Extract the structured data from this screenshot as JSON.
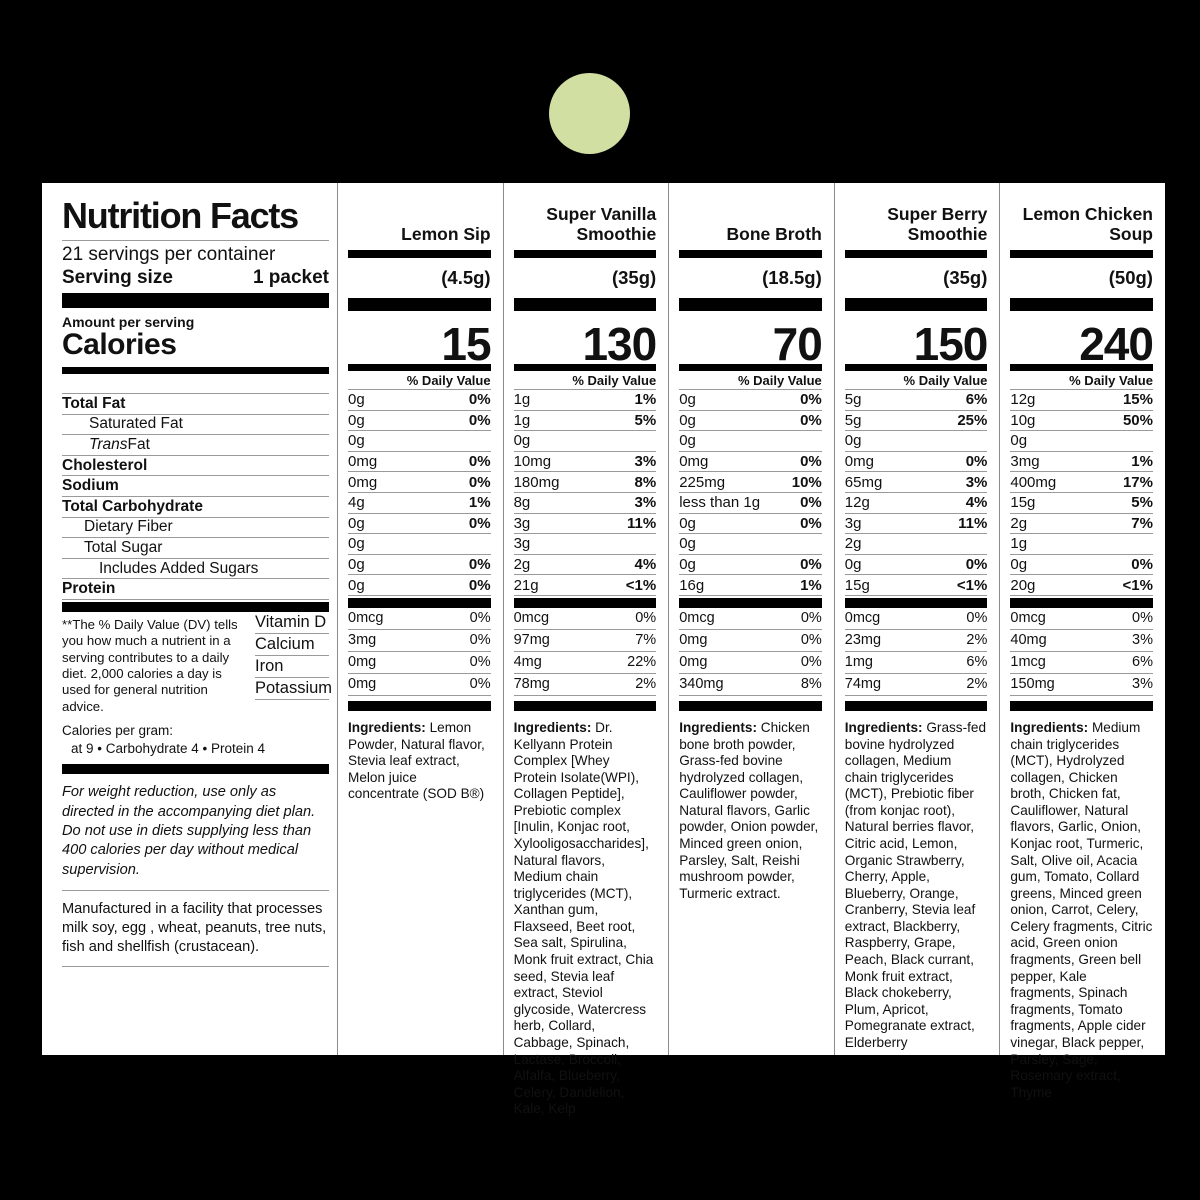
{
  "accent_circle_color": "#d2dfa3",
  "daily_value_header": "% Daily Value",
  "ingredients_label": "Ingredients:",
  "facts": {
    "title": "Nutrition Facts",
    "servings_per_container": "21 servings per container",
    "serving_size_label": "Serving size",
    "serving_size_value": "1 packet",
    "amount_per_serving": "Amount per serving",
    "calories_label": "Calories",
    "rows": [
      {
        "parts": [
          {
            "text": "Total Fat"
          }
        ],
        "bold": true,
        "indent": 0
      },
      {
        "parts": [
          {
            "text": "Saturated Fat"
          }
        ],
        "bold": false,
        "indent": 1
      },
      {
        "parts": [
          {
            "text": "Trans",
            "italic": true
          },
          {
            "text": " Fat"
          }
        ],
        "bold": false,
        "indent": 1
      },
      {
        "parts": [
          {
            "text": "Cholesterol"
          }
        ],
        "bold": true,
        "indent": 0
      },
      {
        "parts": [
          {
            "text": "Sodium"
          }
        ],
        "bold": true,
        "indent": 0
      },
      {
        "parts": [
          {
            "text": "Total Carbohydrate"
          }
        ],
        "bold": true,
        "indent": 0
      },
      {
        "parts": [
          {
            "text": "Dietary Fiber"
          }
        ],
        "bold": false,
        "indent": 2
      },
      {
        "parts": [
          {
            "text": "Total Sugar"
          }
        ],
        "bold": false,
        "indent": 2
      },
      {
        "parts": [
          {
            "text": "Includes Added Sugars"
          }
        ],
        "bold": false,
        "indent": 3
      },
      {
        "parts": [
          {
            "text": "Protein"
          }
        ],
        "bold": true,
        "indent": 0
      }
    ],
    "vitamins": [
      "Vitamin D",
      "Calcium",
      "Iron",
      "Potassium"
    ],
    "footnote": "**The % Daily Value (DV) tells you how much a nutrient in a serving contributes to a daily diet. 2,000 calories a day is used for general nutrition advice.",
    "calories_per_gram_title": "Calories per gram:",
    "calories_per_gram_values": "at 9 • Carbohydrate 4 • Protein 4",
    "weight_reduction_note": "For weight reduction, use only as directed in the accompanying diet plan. Do not use in diets supplying less than 400 calories per day without medical supervision.",
    "allergen_note": "Manufactured in a facility that processes milk soy, egg , wheat,  peanuts, tree nuts, fish and shellfish (crustacean)."
  },
  "products": [
    {
      "name": "Lemon Sip",
      "weight": "(4.5g)",
      "calories": "15",
      "rows": [
        [
          "0g",
          "0%"
        ],
        [
          "0g",
          "0%"
        ],
        [
          "0g",
          ""
        ],
        [
          "0mg",
          "0%"
        ],
        [
          "0mg",
          "0%"
        ],
        [
          "4g",
          "1%"
        ],
        [
          "0g",
          "0%"
        ],
        [
          "0g",
          ""
        ],
        [
          "0g",
          "0%"
        ],
        [
          "0g",
          "0%"
        ]
      ],
      "vitamins": [
        [
          "0mcg",
          "0%"
        ],
        [
          "3mg",
          "0%"
        ],
        [
          "0mg",
          "0%"
        ],
        [
          "0mg",
          "0%"
        ]
      ],
      "ingredients": "Lemon Powder, Natural flavor, Stevia leaf extract, Melon juice concentrate (SOD B®)"
    },
    {
      "name": "Super Vanilla Smoothie",
      "weight": "(35g)",
      "calories": "130",
      "rows": [
        [
          "1g",
          "1%"
        ],
        [
          "1g",
          "5%"
        ],
        [
          "0g",
          ""
        ],
        [
          "10mg",
          "3%"
        ],
        [
          "180mg",
          "8%"
        ],
        [
          "8g",
          "3%"
        ],
        [
          "3g",
          "11%"
        ],
        [
          "3g",
          ""
        ],
        [
          "2g",
          "4%"
        ],
        [
          "21g",
          "<1%"
        ]
      ],
      "vitamins": [
        [
          "0mcg",
          "0%"
        ],
        [
          "97mg",
          "7%"
        ],
        [
          "4mg",
          "22%"
        ],
        [
          "78mg",
          "2%"
        ]
      ],
      "ingredients": "Dr. Kellyann Protein Complex [Whey Protein Isolate(WPI), Collagen Peptide], Prebiotic complex [Inulin, Konjac root, Xylooligosaccharides], Natural flavors, Medium chain triglycerides (MCT), Xanthan gum, Flaxseed, Beet root, Sea salt, Spirulina, Monk fruit extract, Chia seed, Stevia leaf extract, Steviol glycoside, Watercress herb, Collard, Cabbage, Spinach, Lactase, Broccoli, Alfalfa, Blueberry, Celery, Dandelion, Kale, Kelp"
    },
    {
      "name": "Bone Broth",
      "weight": "(18.5g)",
      "calories": "70",
      "rows": [
        [
          "0g",
          "0%"
        ],
        [
          "0g",
          "0%"
        ],
        [
          "0g",
          ""
        ],
        [
          "0mg",
          "0%"
        ],
        [
          "225mg",
          "10%"
        ],
        [
          "less than 1g",
          "0%"
        ],
        [
          "0g",
          "0%"
        ],
        [
          "0g",
          ""
        ],
        [
          "0g",
          "0%"
        ],
        [
          "16g",
          "1%"
        ]
      ],
      "vitamins": [
        [
          "0mcg",
          "0%"
        ],
        [
          "0mg",
          "0%"
        ],
        [
          "0mg",
          "0%"
        ],
        [
          "340mg",
          "8%"
        ]
      ],
      "ingredients": "Chicken bone broth powder, Grass-fed bovine hydrolyzed collagen, Cauliflower powder, Natural flavors, Garlic powder, Onion powder, Minced green onion, Parsley, Salt, Reishi mushroom powder, Turmeric extract."
    },
    {
      "name": "Super Berry Smoothie",
      "weight": "(35g)",
      "calories": "150",
      "rows": [
        [
          "5g",
          "6%"
        ],
        [
          "5g",
          "25%"
        ],
        [
          "0g",
          ""
        ],
        [
          "0mg",
          "0%"
        ],
        [
          "65mg",
          "3%"
        ],
        [
          "12g",
          "4%"
        ],
        [
          "3g",
          "11%"
        ],
        [
          "2g",
          ""
        ],
        [
          "0g",
          "0%"
        ],
        [
          "15g",
          "<1%"
        ]
      ],
      "vitamins": [
        [
          "0mcg",
          "0%"
        ],
        [
          "23mg",
          "2%"
        ],
        [
          "1mg",
          "6%"
        ],
        [
          "74mg",
          "2%"
        ]
      ],
      "ingredients": "Grass-fed bovine hydrolyzed collagen, Medium chain triglycerides (MCT), Prebiotic fiber (from konjac root), Natural berries flavor, Citric acid, Lemon, Organic Strawberry, Cherry, Apple, Blueberry, Orange, Cranberry, Stevia leaf extract, Blackberry, Raspberry, Grape, Peach, Black currant, Monk fruit extract, Black chokeberry, Plum, Apricot, Pomegranate extract, Elderberry"
    },
    {
      "name": "Lemon Chicken Soup",
      "weight": "(50g)",
      "calories": "240",
      "rows": [
        [
          "12g",
          "15%"
        ],
        [
          "10g",
          "50%"
        ],
        [
          "0g",
          ""
        ],
        [
          "3mg",
          "1%"
        ],
        [
          "400mg",
          "17%"
        ],
        [
          "15g",
          "5%"
        ],
        [
          "2g",
          "7%"
        ],
        [
          "1g",
          ""
        ],
        [
          "0g",
          "0%"
        ],
        [
          "20g",
          "<1%"
        ]
      ],
      "vitamins": [
        [
          "0mcg",
          "0%"
        ],
        [
          "40mg",
          "3%"
        ],
        [
          "1mcg",
          "6%"
        ],
        [
          "150mg",
          "3%"
        ]
      ],
      "ingredients": "Medium chain triglycerides (MCT), Hydrolyzed collagen, Chicken broth, Chicken fat, Cauliflower, Natural flavors, Garlic, Onion, Konjac root, Turmeric, Salt, Olive oil, Acacia gum, Tomato, Collard greens, Minced green onion, Carrot, Celery, Celery fragments,  Citric acid, Green onion fragments, Green bell pepper, Kale fragments, Spinach fragments, Tomato fragments, Apple cider vinegar, Black pepper, Parsley, Sage, Rosemary extract, Thyme"
    }
  ]
}
